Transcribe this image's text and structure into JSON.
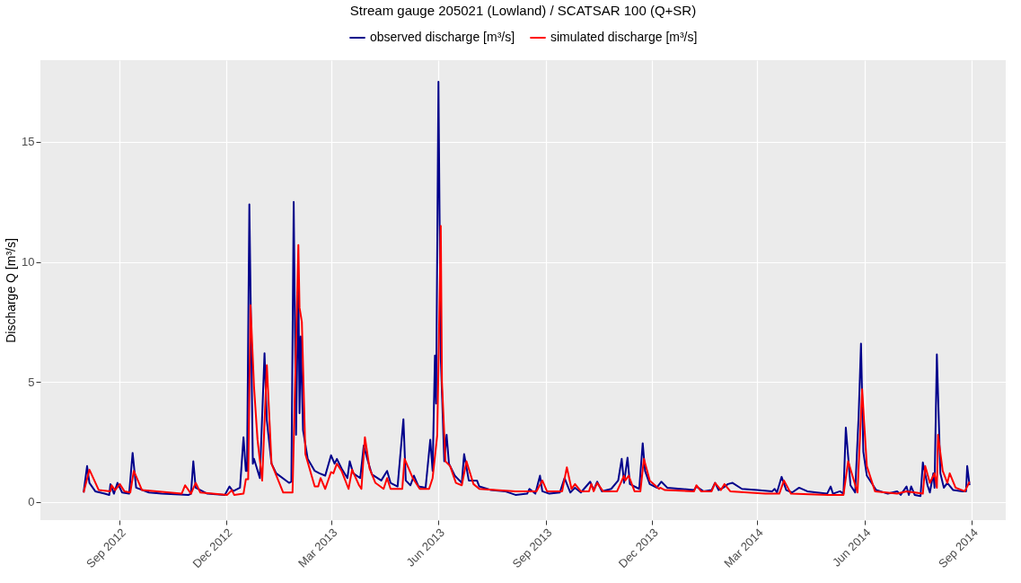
{
  "chart_data": {
    "type": "line",
    "title": "Stream gauge 205021 (Lowland) / SCATSAR 100 (Q+SR)",
    "ylabel": "Discharge Q [m³/s]",
    "legend": "top",
    "grid": true,
    "xlim": [
      "2012-06-25",
      "2014-09-30"
    ],
    "ylim": [
      -0.75,
      18.4
    ],
    "yticks": [
      0,
      5,
      10,
      15
    ],
    "xticks": [
      {
        "value": "2012-09-01",
        "label": "Sep 2012"
      },
      {
        "value": "2012-12-01",
        "label": "Dec 2012"
      },
      {
        "value": "2013-03-01",
        "label": "Mar 2013"
      },
      {
        "value": "2013-06-01",
        "label": "Jun 2013"
      },
      {
        "value": "2013-09-01",
        "label": "Sep 2013"
      },
      {
        "value": "2013-12-01",
        "label": "Dec 2013"
      },
      {
        "value": "2014-03-01",
        "label": "Mar 2014"
      },
      {
        "value": "2014-06-01",
        "label": "Jun 2014"
      },
      {
        "value": "2014-09-01",
        "label": "Sep 2014"
      }
    ],
    "series": [
      {
        "name": "observed discharge [m³/s]",
        "color": "#00008b",
        "x": [
          "2012-08-01",
          "2012-08-04",
          "2012-08-06",
          "2012-08-11",
          "2012-08-19",
          "2012-08-23",
          "2012-08-24",
          "2012-08-27",
          "2012-08-30",
          "2012-09-03",
          "2012-09-09",
          "2012-09-12",
          "2012-09-15",
          "2012-09-26",
          "2012-10-07",
          "2012-10-30",
          "2012-11-01",
          "2012-11-03",
          "2012-11-05",
          "2012-11-15",
          "2012-11-30",
          "2012-12-04",
          "2012-12-07",
          "2012-12-13",
          "2012-12-16",
          "2012-12-18",
          "2012-12-19",
          "2012-12-21",
          "2012-12-24",
          "2012-12-25",
          "2012-12-30",
          "2013-01-03",
          "2013-01-05",
          "2013-01-09",
          "2013-01-13",
          "2013-01-24",
          "2013-01-26",
          "2013-01-28",
          "2013-01-30",
          "2013-02-01",
          "2013-02-02",
          "2013-02-03",
          "2013-02-05",
          "2013-02-09",
          "2013-02-15",
          "2013-02-19",
          "2013-02-24",
          "2013-03-01",
          "2013-03-04",
          "2013-03-06",
          "2013-03-10",
          "2013-03-15",
          "2013-03-17",
          "2013-03-20",
          "2013-03-26",
          "2013-03-29",
          "2013-04-01",
          "2013-04-05",
          "2013-04-13",
          "2013-04-18",
          "2013-04-21",
          "2013-04-27",
          "2013-05-02",
          "2013-05-04",
          "2013-05-08",
          "2013-05-11",
          "2013-05-15",
          "2013-05-21",
          "2013-05-25",
          "2013-05-27",
          "2013-05-29",
          "2013-05-30",
          "2013-06-01",
          "2013-06-03",
          "2013-06-06",
          "2013-06-08",
          "2013-06-10",
          "2013-06-15",
          "2013-06-21",
          "2013-06-23",
          "2013-06-27",
          "2013-07-04",
          "2013-07-06",
          "2013-07-16",
          "2013-07-28",
          "2013-08-06",
          "2013-08-16",
          "2013-08-18",
          "2013-08-23",
          "2013-08-27",
          "2013-08-29",
          "2013-09-04",
          "2013-09-13",
          "2013-09-17",
          "2013-09-22",
          "2013-09-26",
          "2013-10-01",
          "2013-10-09",
          "2013-10-12",
          "2013-10-15",
          "2013-10-19",
          "2013-10-27",
          "2013-11-02",
          "2013-11-05",
          "2013-11-07",
          "2013-11-10",
          "2013-11-12",
          "2013-11-20",
          "2013-11-23",
          "2013-11-25",
          "2013-11-29",
          "2013-12-05",
          "2013-12-09",
          "2013-12-14",
          "2014-01-06",
          "2014-01-08",
          "2014-01-14",
          "2014-01-21",
          "2014-01-24",
          "2014-01-27",
          "2014-01-31",
          "2014-02-04",
          "2014-02-08",
          "2014-02-16",
          "2014-03-01",
          "2014-03-14",
          "2014-03-16",
          "2014-03-18",
          "2014-03-22",
          "2014-03-26",
          "2014-03-31",
          "2014-04-06",
          "2014-04-13",
          "2014-04-21",
          "2014-04-30",
          "2014-05-03",
          "2014-05-05",
          "2014-05-11",
          "2014-05-14",
          "2014-05-16",
          "2014-05-20",
          "2014-05-24",
          "2014-05-27",
          "2014-05-29",
          "2014-05-31",
          "2014-06-03",
          "2014-06-11",
          "2014-06-21",
          "2014-06-29",
          "2014-07-02",
          "2014-07-07",
          "2014-07-09",
          "2014-07-11",
          "2014-07-14",
          "2014-07-19",
          "2014-07-21",
          "2014-07-25",
          "2014-07-27",
          "2014-07-30",
          "2014-07-31",
          "2014-08-02",
          "2014-08-05",
          "2014-08-08",
          "2014-08-11",
          "2014-08-16",
          "2014-08-24",
          "2014-08-27",
          "2014-08-28",
          "2014-08-30"
        ],
        "values": [
          0.4,
          1.5,
          0.8,
          0.45,
          0.35,
          0.3,
          0.75,
          0.35,
          0.8,
          0.4,
          0.35,
          2.05,
          0.6,
          0.4,
          0.35,
          0.3,
          0.35,
          1.7,
          0.6,
          0.35,
          0.3,
          0.65,
          0.45,
          0.6,
          2.7,
          1.3,
          1.3,
          12.4,
          1.6,
          1.8,
          1.0,
          6.2,
          3.4,
          1.6,
          1.2,
          0.8,
          0.85,
          12.5,
          2.8,
          9.2,
          3.7,
          6.9,
          3.0,
          1.8,
          1.3,
          1.2,
          1.1,
          1.95,
          1.6,
          1.8,
          1.4,
          1.0,
          1.7,
          1.2,
          1.0,
          2.35,
          1.8,
          1.15,
          0.9,
          1.3,
          0.8,
          0.65,
          3.45,
          0.9,
          0.7,
          1.1,
          0.65,
          0.6,
          2.6,
          1.3,
          6.1,
          4.1,
          17.5,
          6.0,
          1.7,
          2.8,
          1.6,
          1.1,
          0.8,
          2.0,
          0.9,
          0.9,
          0.65,
          0.5,
          0.45,
          0.3,
          0.35,
          0.55,
          0.35,
          1.1,
          0.45,
          0.35,
          0.4,
          1.0,
          0.4,
          0.6,
          0.4,
          0.85,
          0.5,
          0.85,
          0.45,
          0.55,
          0.9,
          1.8,
          0.8,
          1.85,
          0.75,
          0.55,
          2.45,
          1.3,
          0.75,
          0.6,
          0.85,
          0.6,
          0.5,
          0.65,
          0.45,
          0.5,
          0.8,
          0.5,
          0.6,
          0.75,
          0.8,
          0.55,
          0.5,
          0.45,
          0.55,
          0.4,
          1.05,
          0.5,
          0.4,
          0.6,
          0.45,
          0.4,
          0.35,
          0.65,
          0.35,
          0.45,
          0.35,
          3.1,
          0.7,
          0.4,
          3.6,
          6.6,
          2.1,
          1.1,
          0.5,
          0.35,
          0.45,
          0.3,
          0.65,
          0.3,
          0.65,
          0.3,
          0.25,
          1.65,
          0.7,
          0.4,
          1.2,
          0.6,
          6.15,
          1.2,
          0.6,
          0.8,
          0.5,
          0.45,
          0.45,
          1.5,
          0.7
        ]
      },
      {
        "name": "simulated discharge [m³/s]",
        "color": "#ff0000",
        "x": [
          "2012-08-01",
          "2012-08-06",
          "2012-08-14",
          "2012-08-24",
          "2012-08-25",
          "2012-08-28",
          "2012-09-01",
          "2012-09-05",
          "2012-09-10",
          "2012-09-13",
          "2012-09-20",
          "2012-10-24",
          "2012-10-27",
          "2012-11-01",
          "2012-11-05",
          "2012-11-09",
          "2012-12-02",
          "2012-12-06",
          "2012-12-08",
          "2012-12-16",
          "2012-12-18",
          "2012-12-20",
          "2012-12-22",
          "2012-12-25",
          "2012-12-28",
          "2013-01-01",
          "2013-01-05",
          "2013-01-09",
          "2013-01-19",
          "2013-01-27",
          "2013-02-01",
          "2013-02-02",
          "2013-02-04",
          "2013-02-07",
          "2013-02-15",
          "2013-02-18",
          "2013-02-20",
          "2013-02-24",
          "2013-03-01",
          "2013-03-03",
          "2013-03-06",
          "2013-03-10",
          "2013-03-16",
          "2013-03-19",
          "2013-03-25",
          "2013-03-27",
          "2013-03-30",
          "2013-04-03",
          "2013-04-08",
          "2013-04-15",
          "2013-04-18",
          "2013-04-21",
          "2013-05-01",
          "2013-05-03",
          "2013-05-10",
          "2013-05-16",
          "2013-05-24",
          "2013-05-27",
          "2013-05-31",
          "2013-06-03",
          "2013-06-04",
          "2013-06-07",
          "2013-06-11",
          "2013-06-16",
          "2013-06-21",
          "2013-06-25",
          "2013-07-01",
          "2013-07-06",
          "2013-08-06",
          "2013-08-24",
          "2013-08-29",
          "2013-09-02",
          "2013-09-15",
          "2013-09-19",
          "2013-09-23",
          "2013-09-26",
          "2013-10-01",
          "2013-10-08",
          "2013-10-10",
          "2013-10-12",
          "2013-10-15",
          "2013-10-20",
          "2013-11-01",
          "2013-11-07",
          "2013-11-08",
          "2013-11-11",
          "2013-11-16",
          "2013-11-21",
          "2013-11-24",
          "2013-11-29",
          "2013-12-07",
          "2013-12-08",
          "2013-12-12",
          "2014-01-06",
          "2014-01-08",
          "2014-01-12",
          "2014-01-21",
          "2014-01-24",
          "2014-01-29",
          "2014-02-01",
          "2014-02-06",
          "2014-03-08",
          "2014-03-20",
          "2014-03-24",
          "2014-03-30",
          "2014-05-01",
          "2014-05-14",
          "2014-05-18",
          "2014-05-26",
          "2014-05-30",
          "2014-06-03",
          "2014-06-10",
          "2014-06-29",
          "2014-07-07",
          "2014-07-21",
          "2014-07-23",
          "2014-07-27",
          "2014-07-31",
          "2014-08-02",
          "2014-08-03",
          "2014-08-07",
          "2014-08-11",
          "2014-08-13",
          "2014-08-18",
          "2014-08-26",
          "2014-08-30"
        ],
        "values": [
          0.4,
          1.35,
          0.5,
          0.45,
          0.7,
          0.5,
          0.75,
          0.45,
          0.4,
          1.3,
          0.5,
          0.35,
          0.7,
          0.35,
          0.8,
          0.4,
          0.3,
          0.5,
          0.3,
          0.35,
          0.95,
          0.95,
          8.2,
          4.8,
          2.6,
          0.9,
          5.7,
          1.6,
          0.4,
          0.4,
          10.7,
          8.1,
          7.5,
          2.0,
          0.65,
          0.65,
          1.0,
          0.55,
          1.25,
          1.2,
          1.6,
          1.3,
          0.55,
          1.35,
          0.7,
          0.55,
          2.7,
          1.4,
          0.8,
          0.55,
          1.0,
          0.55,
          0.55,
          1.8,
          1.0,
          0.55,
          0.55,
          1.0,
          2.8,
          11.5,
          5.0,
          1.7,
          1.5,
          0.8,
          0.7,
          1.7,
          0.75,
          0.55,
          0.45,
          0.45,
          0.9,
          0.45,
          0.45,
          1.45,
          0.55,
          0.75,
          0.45,
          0.45,
          0.75,
          0.45,
          0.8,
          0.45,
          0.45,
          1.1,
          0.9,
          1.1,
          0.45,
          0.45,
          1.8,
          0.9,
          0.55,
          0.6,
          0.5,
          0.45,
          0.7,
          0.45,
          0.45,
          0.8,
          0.5,
          0.75,
          0.45,
          0.35,
          0.35,
          0.9,
          0.35,
          0.3,
          0.3,
          1.7,
          0.4,
          4.7,
          1.5,
          0.45,
          0.35,
          0.45,
          0.35,
          1.5,
          0.8,
          1.2,
          0.6,
          2.8,
          1.3,
          0.8,
          1.2,
          0.6,
          0.45,
          0.85
        ]
      }
    ]
  }
}
